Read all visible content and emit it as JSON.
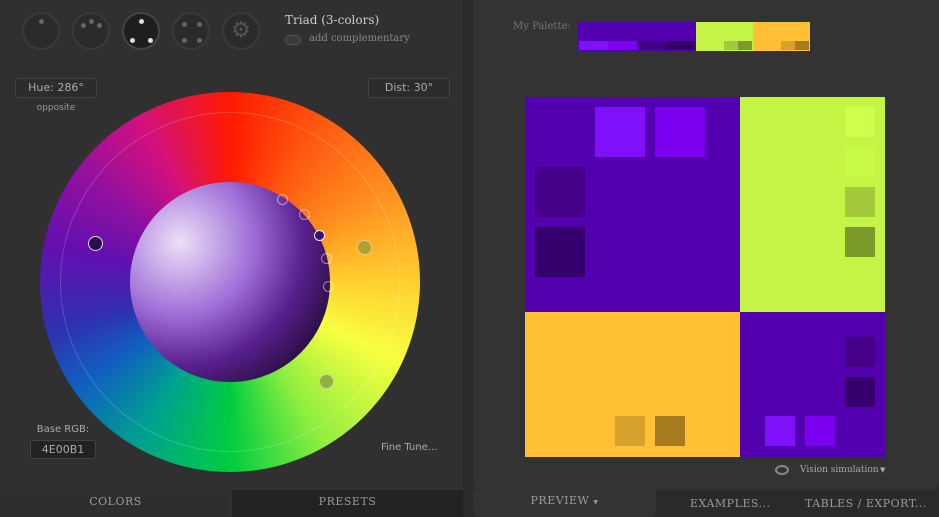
{
  "scheme": {
    "name": "Triad (3-colors)",
    "toggle_label": "add complementary"
  },
  "dials": [
    "mono",
    "adjacent",
    "triad",
    "tetrad",
    "freestyle"
  ],
  "hue": {
    "label": "Hue: 286°",
    "sub": "opposite"
  },
  "dist": {
    "label": "Dist: 30°"
  },
  "base_rgb": {
    "label": "Base RGB:",
    "value": "4E00B1"
  },
  "fine_tune": "Fine Tune...",
  "left_tabs": [
    "COLORS",
    "PRESETS"
  ],
  "palette": {
    "label": "My Palette:",
    "colors": {
      "primary": [
        "#5300AF",
        "#8010FA",
        "#7A00EF",
        "#440088",
        "#35006D"
      ],
      "second": [
        "#C4F546",
        "#D0FF4E",
        "#C8FA48",
        "#A3C93A",
        "#7B9A29"
      ],
      "third": [
        "#FFC035",
        "#FFC035",
        "#FFC035",
        "#D6A22D",
        "#A67B1D"
      ]
    }
  },
  "vision": "Vision simulation",
  "right_tabs": {
    "preview": "PREVIEW",
    "examples": "EXAMPLES...",
    "tables": "TABLES / EXPORT..."
  }
}
